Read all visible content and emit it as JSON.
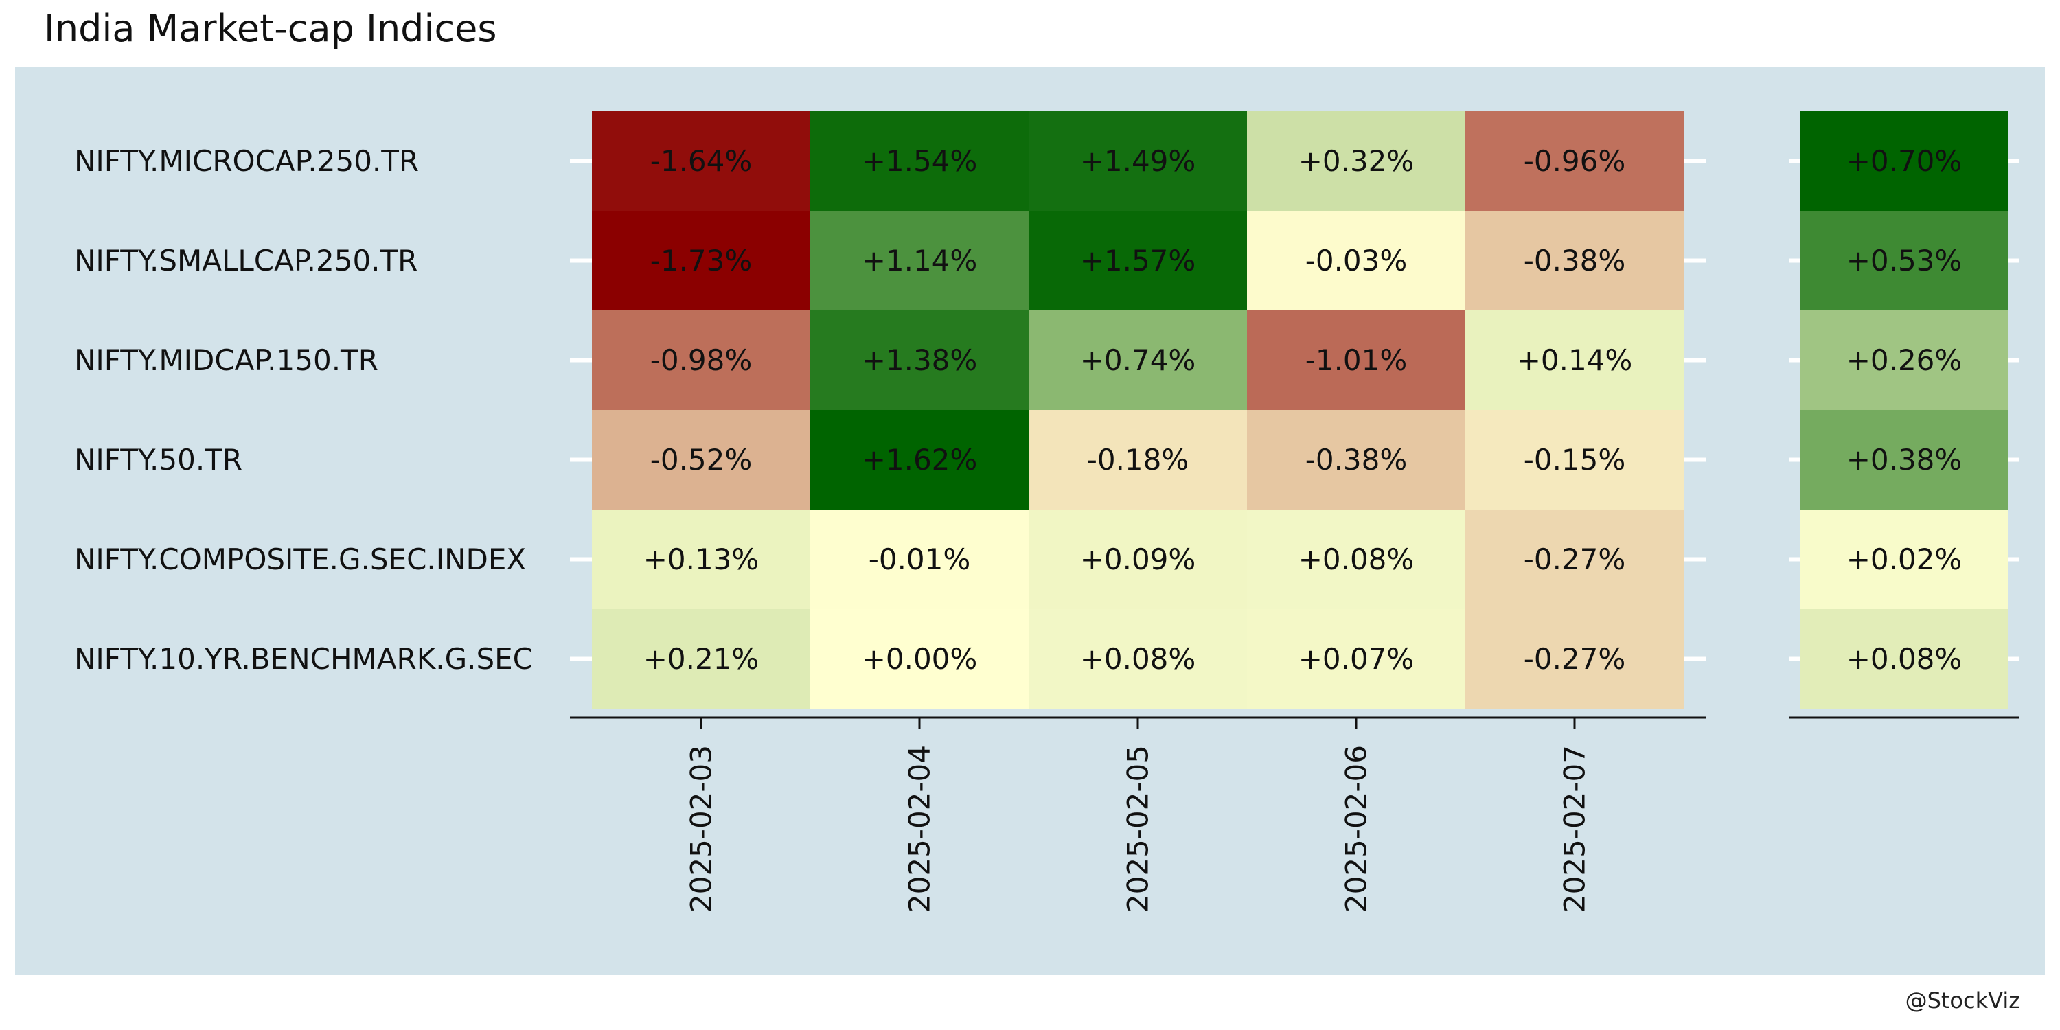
{
  "title": "India Market-cap Indices",
  "credit": "@StockViz",
  "colors": {
    "panel_background": "#d3e3ea",
    "negative_max": "#8b0000",
    "neutral": "#ffffd0",
    "positive_max": "#006400"
  },
  "chart_data": {
    "type": "heatmap",
    "title": "India Market-cap Indices",
    "rows": [
      "NIFTY.MICROCAP.250.TR",
      "NIFTY.SMALLCAP.250.TR",
      "NIFTY.MIDCAP.150.TR",
      "NIFTY.50.TR",
      "NIFTY.COMPOSITE.G.SEC.INDEX",
      "NIFTY.10.YR.BENCHMARK.G.SEC"
    ],
    "columns": [
      "2025-02-03",
      "2025-02-04",
      "2025-02-05",
      "2025-02-06",
      "2025-02-07"
    ],
    "values": [
      [
        -1.64,
        1.54,
        1.49,
        0.32,
        -0.96
      ],
      [
        -1.73,
        1.14,
        1.57,
        -0.03,
        -0.38
      ],
      [
        -0.98,
        1.38,
        0.74,
        -1.01,
        0.14
      ],
      [
        -0.52,
        1.62,
        -0.18,
        -0.38,
        -0.15
      ],
      [
        0.13,
        -0.01,
        0.09,
        0.08,
        -0.27
      ],
      [
        0.21,
        0.0,
        0.08,
        0.07,
        -0.27
      ]
    ],
    "labels": [
      [
        "-1.64%",
        "+1.54%",
        "+1.49%",
        "+0.32%",
        "-0.96%"
      ],
      [
        "-1.73%",
        "+1.14%",
        "+1.57%",
        "-0.03%",
        "-0.38%"
      ],
      [
        "-0.98%",
        "+1.38%",
        "+0.74%",
        "-1.01%",
        "+0.14%"
      ],
      [
        "-0.52%",
        "+1.62%",
        "-0.18%",
        "-0.38%",
        "-0.15%"
      ],
      [
        "+0.13%",
        "-0.01%",
        "+0.09%",
        "+0.08%",
        "-0.27%"
      ],
      [
        "+0.21%",
        "+0.00%",
        "+0.08%",
        "+0.07%",
        "-0.27%"
      ]
    ],
    "summary_values": [
      0.7,
      0.53,
      0.26,
      0.38,
      0.02,
      0.08
    ],
    "summary_labels": [
      "+0.70%",
      "+0.53%",
      "+0.26%",
      "+0.38%",
      "+0.02%",
      "+0.08%"
    ],
    "color_scale": "red-yellow-green diverging, per panel"
  }
}
